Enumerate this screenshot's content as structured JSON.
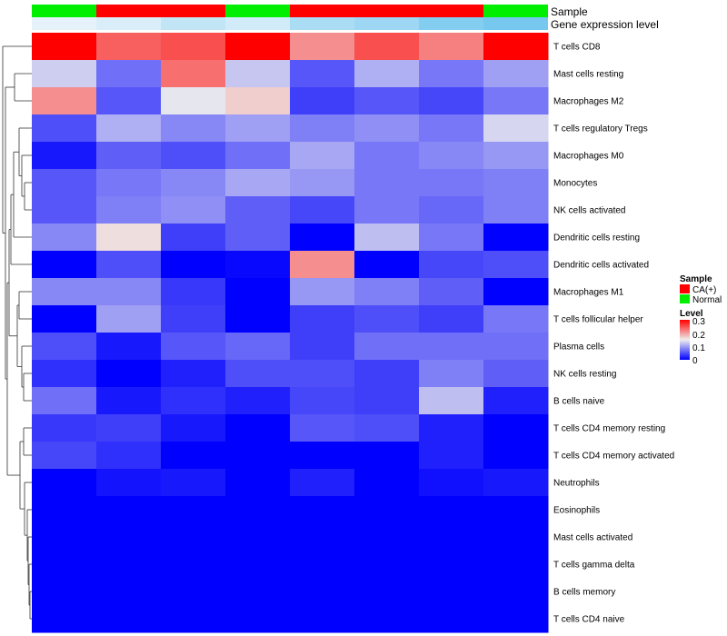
{
  "chart_data": {
    "type": "heatmap",
    "title": "",
    "annotation_labels": {
      "sample": "Sample",
      "gene_expression": "Gene expression level"
    },
    "sample_groups": [
      "Normal",
      "CA(+)",
      "CA(+)",
      "Normal",
      "CA(+)",
      "CA(+)",
      "CA(+)",
      "Normal"
    ],
    "gene_expression_level": [
      0.02,
      0.05,
      0.11,
      0.07,
      0.17,
      0.2,
      0.27,
      0.3
    ],
    "rows": [
      "T cells CD8",
      "Mast cells resting",
      "Macrophages M2",
      "T cells regulatory  Tregs",
      "Macrophages M0",
      "Monocytes",
      "NK cells activated",
      "Dendritic cells resting",
      "Dendritic cells activated",
      "Macrophages M1",
      "T cells follicular helper",
      "Plasma cells",
      "NK cells resting",
      "B cells naive",
      "T cells CD4 memory resting",
      "T cells CD4 memory activated",
      "Neutrophils",
      "Eosinophils",
      "Mast cells activated",
      "T cells gamma delta",
      "B cells memory",
      "T cells CD4 naive"
    ],
    "values": [
      [
        0.3,
        0.24,
        0.25,
        0.3,
        0.21,
        0.25,
        0.22,
        0.3
      ],
      [
        0.13,
        0.07,
        0.23,
        0.125,
        0.055,
        0.11,
        0.075,
        0.1
      ],
      [
        0.21,
        0.055,
        0.145,
        0.17,
        0.04,
        0.055,
        0.045,
        0.075
      ],
      [
        0.05,
        0.11,
        0.085,
        0.1,
        0.08,
        0.09,
        0.075,
        0.135
      ],
      [
        0.015,
        0.06,
        0.05,
        0.07,
        0.105,
        0.075,
        0.085,
        0.095
      ],
      [
        0.055,
        0.075,
        0.085,
        0.105,
        0.095,
        0.075,
        0.075,
        0.08
      ],
      [
        0.055,
        0.08,
        0.09,
        0.06,
        0.045,
        0.075,
        0.065,
        0.08
      ],
      [
        0.085,
        0.16,
        0.04,
        0.06,
        0.0,
        0.12,
        0.075,
        0.0
      ],
      [
        0.0,
        0.05,
        0.0,
        0.005,
        0.21,
        0.0,
        0.045,
        0.05
      ],
      [
        0.085,
        0.085,
        0.035,
        0.0,
        0.095,
        0.08,
        0.06,
        0.0
      ],
      [
        0.0,
        0.1,
        0.04,
        0.0,
        0.04,
        0.05,
        0.04,
        0.075
      ],
      [
        0.05,
        0.015,
        0.055,
        0.065,
        0.04,
        0.07,
        0.07,
        0.07
      ],
      [
        0.03,
        0.0,
        0.02,
        0.05,
        0.05,
        0.04,
        0.08,
        0.06
      ],
      [
        0.07,
        0.015,
        0.03,
        0.02,
        0.045,
        0.04,
        0.12,
        0.02
      ],
      [
        0.035,
        0.04,
        0.015,
        0.0,
        0.055,
        0.05,
        0.02,
        0.0
      ],
      [
        0.045,
        0.03,
        0.0,
        0.0,
        0.0,
        0.0,
        0.02,
        0.0
      ],
      [
        0.0,
        0.012,
        0.015,
        0.0,
        0.02,
        0.0,
        0.01,
        0.015
      ],
      [
        0.0,
        0.0,
        0.0,
        0.0,
        0.0,
        0.0,
        0.0,
        0.0
      ],
      [
        0.0,
        0.0,
        0.0,
        0.0,
        0.0,
        0.0,
        0.0,
        0.0
      ],
      [
        0.0,
        0.0,
        0.0,
        0.0,
        0.0,
        0.0,
        0.0,
        0.0
      ],
      [
        0.0,
        0.0,
        0.0,
        0.0,
        0.0,
        0.0,
        0.0,
        0.0
      ],
      [
        0.0,
        0.0,
        0.0,
        0.0,
        0.0,
        0.0,
        0.0,
        0.0
      ]
    ],
    "color_scale": {
      "range": [
        0,
        0.3
      ],
      "low": "#0000ff",
      "mid": "#eeeeee",
      "high": "#ff0000",
      "mid_value": 0.15
    },
    "gene_expression_colors": [
      "#e6f2fa",
      "#76c8ef"
    ],
    "sample_legend": {
      "title": "Sample",
      "entries": [
        {
          "label": "CA(+)",
          "color": "#ff0000"
        },
        {
          "label": "Normal",
          "color": "#00ee00"
        }
      ]
    },
    "level_legend": {
      "title": "Level",
      "ticks": [
        "0.3",
        "0.2",
        "0.1",
        "0"
      ]
    },
    "dendrogram": "row"
  }
}
